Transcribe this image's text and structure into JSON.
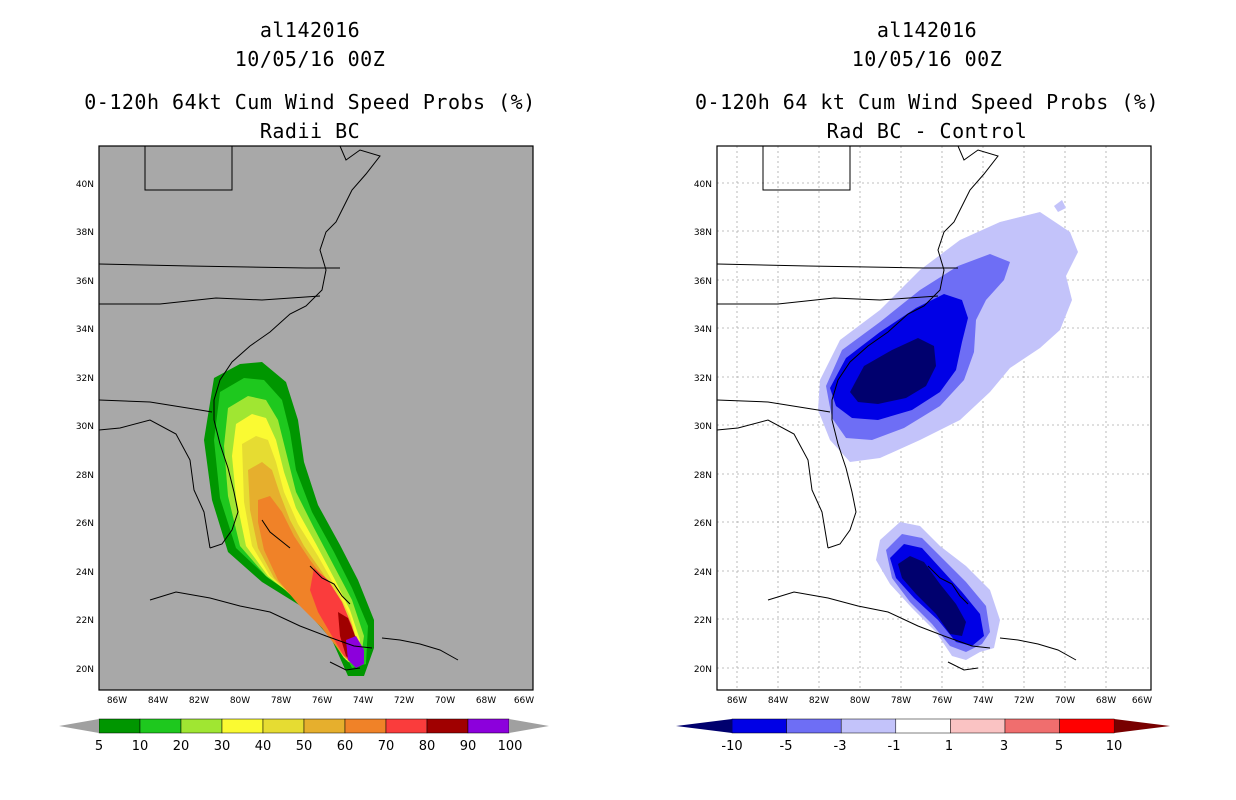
{
  "left_panel": {
    "storm_id": "al142016",
    "datetime": "10/05/16 00Z",
    "title": "0-120h 64kt Cum Wind Speed Probs (%)",
    "subtitle": "Radii BC",
    "lat_labels": [
      "40N",
      "38N",
      "36N",
      "34N",
      "32N",
      "30N",
      "28N",
      "26N",
      "24N",
      "22N",
      "20N"
    ],
    "lon_labels": [
      "86W",
      "84W",
      "82W",
      "80W",
      "78W",
      "76W",
      "74W",
      "72W",
      "70W",
      "68W",
      "66W"
    ],
    "colorbar": {
      "labels": [
        "5",
        "10",
        "20",
        "30",
        "40",
        "50",
        "60",
        "70",
        "80",
        "90",
        "100"
      ],
      "colors": [
        "#009600",
        "#1ec81e",
        "#a0e632",
        "#fafa32",
        "#e6dc32",
        "#e6af2d",
        "#f08228",
        "#fa3c3c",
        "#a00000",
        "#8c00dc"
      ],
      "end_color": "#a0a0a0"
    }
  },
  "right_panel": {
    "storm_id": "al142016",
    "datetime": "10/05/16 00Z",
    "title": "0-120h 64 kt Cum Wind Speed Probs (%)",
    "subtitle": "Rad BC - Control",
    "lat_labels": [
      "40N",
      "38N",
      "36N",
      "34N",
      "32N",
      "30N",
      "28N",
      "26N",
      "24N",
      "22N",
      "20N"
    ],
    "lon_labels": [
      "86W",
      "84W",
      "82W",
      "80W",
      "78W",
      "76W",
      "74W",
      "72W",
      "70W",
      "68W",
      "66W"
    ],
    "colorbar": {
      "labels": [
        "-10",
        "-5",
        "-3",
        "-1",
        "1",
        "3",
        "5",
        "10"
      ],
      "colors": [
        "#0000e6",
        "#6e6ef5",
        "#c3c3fa",
        "#ffffff",
        "#fac3c3",
        "#f06e6e",
        "#ff0000"
      ],
      "low_end_color": "#00006e",
      "high_end_color": "#780000"
    }
  }
}
